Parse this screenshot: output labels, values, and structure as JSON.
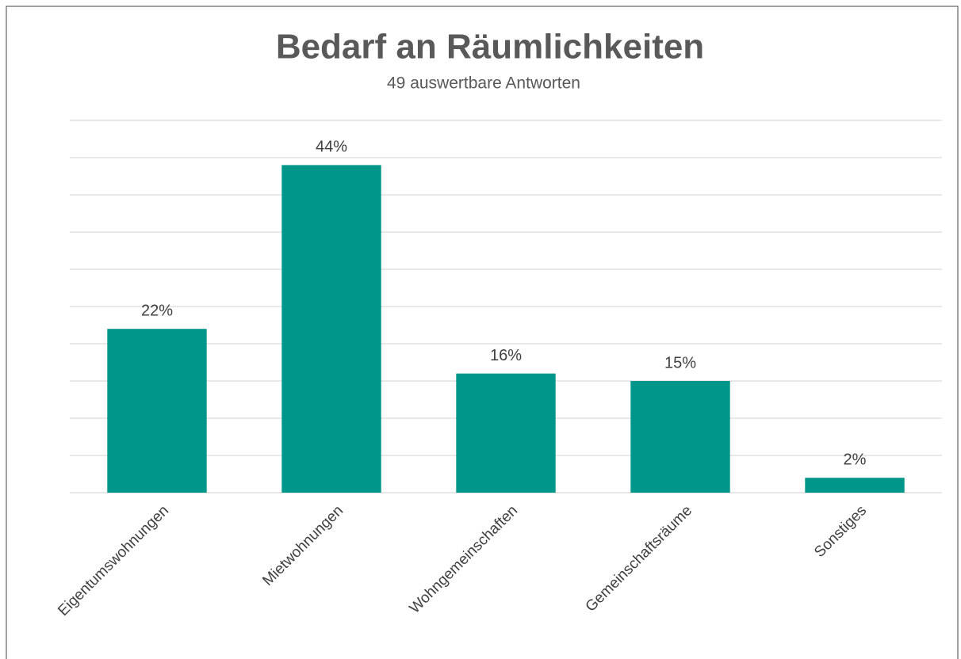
{
  "chart_data": {
    "type": "bar",
    "title": "Bedarf an Räumlichkeiten",
    "subtitle": "49 auswertbare Antworten",
    "categories": [
      "Eigentumswohnungen",
      "Mietwohnungen",
      "Wohngemeinschaften",
      "Gemeinschaftsräume",
      "Sonstiges"
    ],
    "values": [
      22,
      44,
      16,
      15,
      2
    ],
    "value_labels": [
      "22%",
      "44%",
      "16%",
      "15%",
      "2%"
    ],
    "color": "#00968a",
    "ylim": [
      0,
      50
    ],
    "yticks": [
      0,
      5,
      10,
      15,
      20,
      25,
      30,
      35,
      40,
      45,
      50
    ],
    "grid": true
  }
}
